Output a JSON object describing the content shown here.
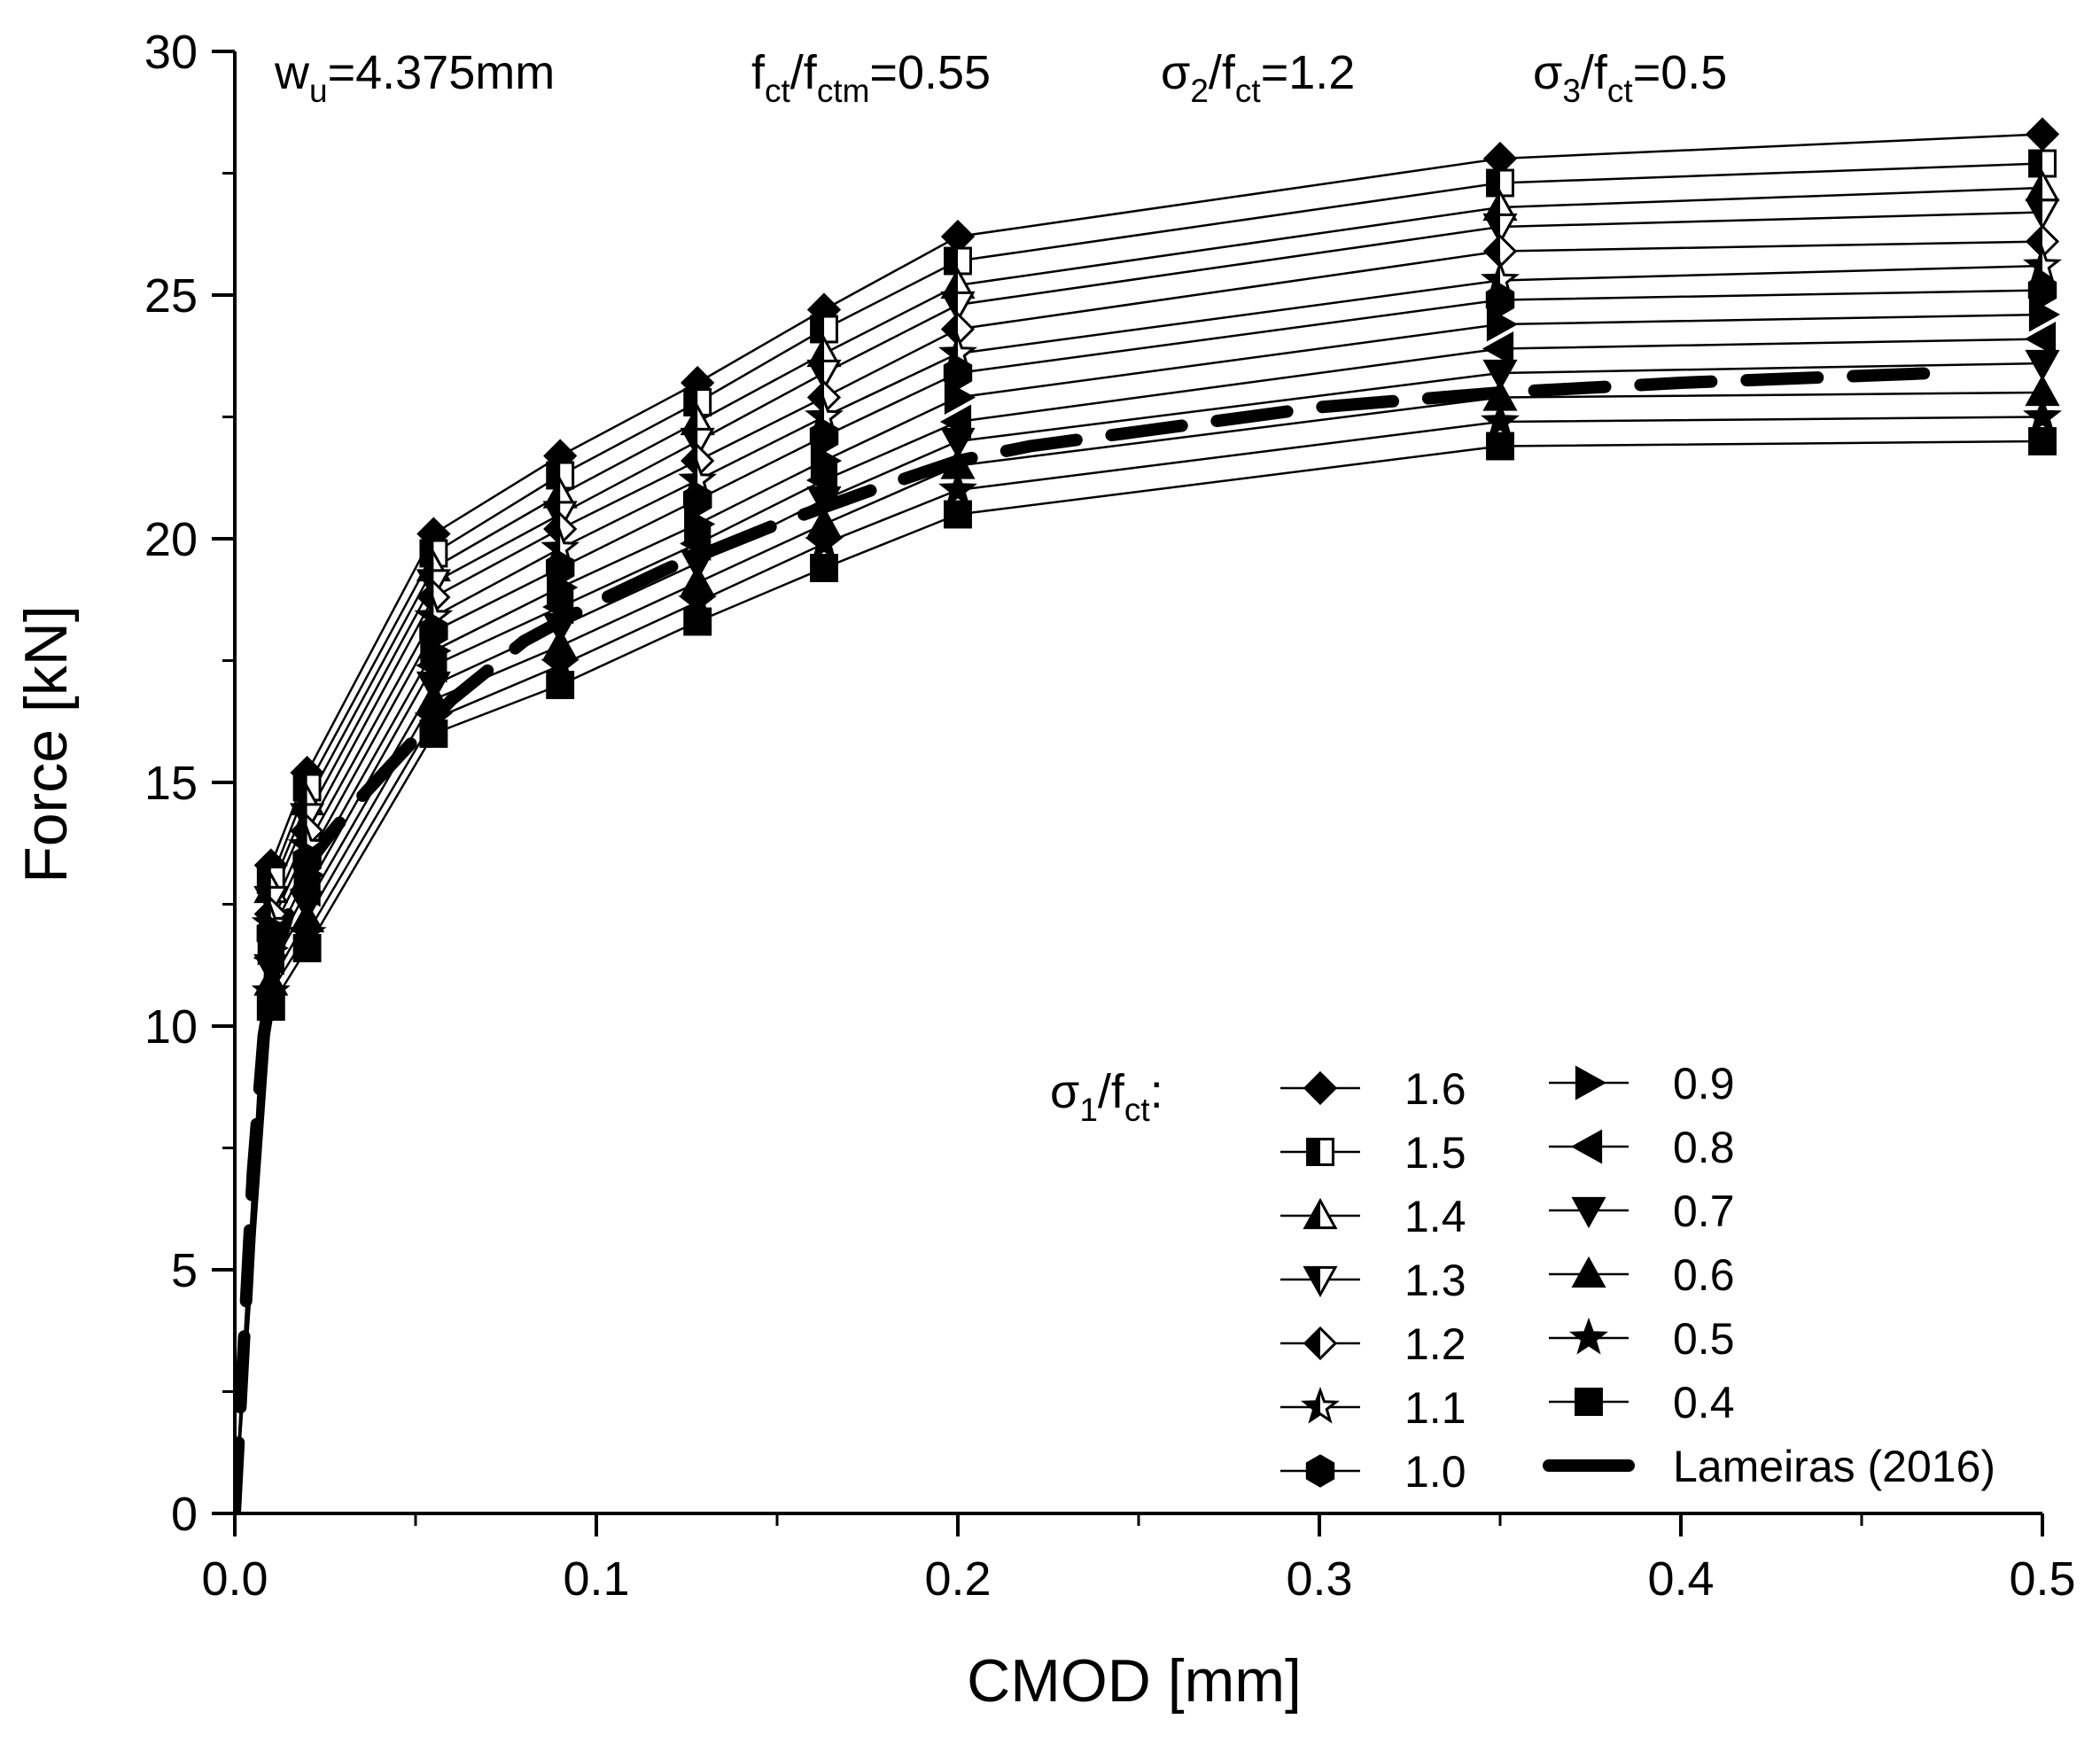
{
  "chart_data": {
    "type": "line",
    "xlabel": "CMOD [mm]",
    "ylabel": "Force [kN]",
    "xlim": [
      0,
      0.5
    ],
    "ylim": [
      0,
      30
    ],
    "x_ticks": [
      "0.0",
      "0.1",
      "0.2",
      "0.3",
      "0.4",
      "0.5"
    ],
    "y_ticks": [
      "0",
      "5",
      "10",
      "15",
      "20",
      "25",
      "30"
    ],
    "annotations": [
      {
        "base": "w",
        "sub": "u",
        "rest": "=4.375mm"
      },
      {
        "base": "f",
        "sub": "ct",
        "mid": "/f",
        "sub2": "ctm",
        "rest": "=0.55"
      },
      {
        "base": "σ",
        "sub": "2",
        "mid": "/f",
        "sub2": "ct",
        "rest": "=1.2"
      },
      {
        "base": "σ",
        "sub": "3",
        "mid": "/f",
        "sub2": "ct",
        "rest": "=0.5"
      }
    ],
    "legend_title": {
      "base": "σ",
      "sub": "1",
      "mid": "/f",
      "sub2": "ct",
      "rest": ":"
    },
    "legend_position": "bottom-right",
    "x": [
      0,
      0.01,
      0.02,
      0.055,
      0.09,
      0.128,
      0.163,
      0.2,
      0.35,
      0.5
    ],
    "series": [
      {
        "name": "1.6",
        "marker": "diamond-filled",
        "values": [
          0,
          13.3,
          15.2,
          20.1,
          21.7,
          23.2,
          24.7,
          26.2,
          27.8,
          28.3
        ]
      },
      {
        "name": "1.5",
        "marker": "square-half",
        "values": [
          0,
          13.0,
          14.9,
          19.7,
          21.3,
          22.8,
          24.3,
          25.7,
          27.3,
          27.7
        ]
      },
      {
        "name": "1.4",
        "marker": "triangle-up-half",
        "values": [
          0,
          12.8,
          14.6,
          19.4,
          20.9,
          22.4,
          23.8,
          25.2,
          26.8,
          27.2
        ]
      },
      {
        "name": "1.3",
        "marker": "triangle-down-half",
        "values": [
          0,
          12.6,
          14.3,
          19.1,
          20.5,
          22.0,
          23.4,
          24.8,
          26.4,
          26.7
        ]
      },
      {
        "name": "1.2",
        "marker": "diamond-half",
        "values": [
          0,
          12.3,
          14.0,
          18.8,
          20.2,
          21.6,
          22.9,
          24.3,
          25.9,
          26.1
        ]
      },
      {
        "name": "1.1",
        "marker": "star-half",
        "values": [
          0,
          12.1,
          13.7,
          18.4,
          19.8,
          21.2,
          22.5,
          23.8,
          25.3,
          25.6
        ]
      },
      {
        "name": "1.0",
        "marker": "hexagon-filled",
        "values": [
          0,
          11.9,
          13.4,
          18.1,
          19.4,
          20.8,
          22.1,
          23.4,
          24.9,
          25.1
        ]
      },
      {
        "name": "0.9",
        "marker": "triangle-right-filled",
        "values": [
          0,
          11.6,
          13.1,
          17.7,
          19.0,
          20.3,
          21.6,
          22.9,
          24.4,
          24.6
        ]
      },
      {
        "name": "0.8",
        "marker": "triangle-left-filled",
        "values": [
          0,
          11.4,
          12.8,
          17.4,
          18.6,
          19.9,
          21.2,
          22.4,
          23.9,
          24.1
        ]
      },
      {
        "name": "0.7",
        "marker": "triangle-down-filled",
        "values": [
          0,
          11.2,
          12.5,
          17.0,
          18.2,
          19.5,
          20.8,
          22.0,
          23.4,
          23.6
        ]
      },
      {
        "name": "0.6",
        "marker": "triangle-up-filled",
        "values": [
          0,
          10.9,
          12.2,
          16.7,
          17.8,
          19.1,
          20.3,
          21.5,
          22.9,
          23.0
        ]
      },
      {
        "name": "0.5",
        "marker": "star-filled",
        "values": [
          0,
          10.7,
          11.9,
          16.3,
          17.4,
          18.7,
          19.9,
          21.0,
          22.4,
          22.5
        ]
      },
      {
        "name": "0.4",
        "marker": "square-filled",
        "values": [
          0,
          10.4,
          11.6,
          16.0,
          17.0,
          18.3,
          19.4,
          20.5,
          21.9,
          22.0
        ]
      }
    ],
    "reference_curve": {
      "name": "Lameiras (2016)",
      "style": "dashed-thick",
      "x": [
        0,
        0.0025,
        0.005,
        0.008,
        0.012,
        0.016,
        0.02,
        0.027,
        0.035,
        0.045,
        0.06,
        0.08,
        0.1,
        0.12,
        0.15,
        0.18,
        0.2,
        0.22,
        0.25,
        0.3,
        0.35,
        0.4,
        0.47
      ],
      "y": [
        0,
        3.5,
        7.0,
        9.8,
        11.6,
        12.6,
        13.3,
        14.0,
        14.7,
        15.5,
        16.7,
        17.9,
        18.7,
        19.4,
        20.3,
        21.1,
        21.6,
        21.9,
        22.2,
        22.7,
        23.0,
        23.2,
        23.4
      ]
    }
  }
}
